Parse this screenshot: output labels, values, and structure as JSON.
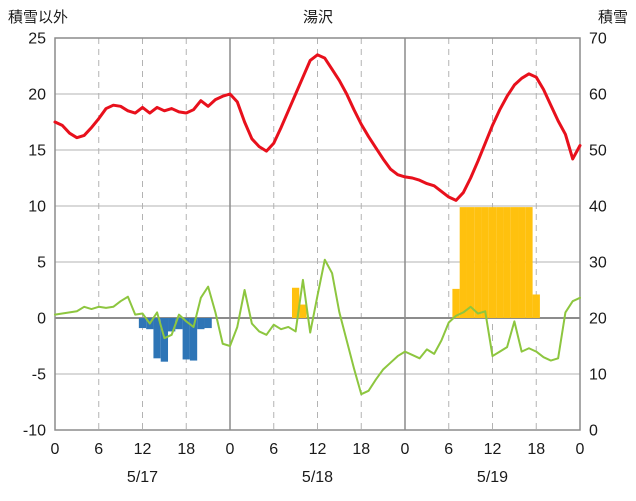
{
  "page": {
    "title_left": "積雪以外",
    "title_center": "湯沢",
    "title_right": "積雪"
  },
  "chart_data": {
    "type": "line",
    "title": "湯沢",
    "left_axis_title": "積雪以外",
    "right_axis_title": "積雪",
    "xlim": [
      0,
      72
    ],
    "ylim_left": [
      -10,
      25
    ],
    "ylim_right": [
      0,
      70
    ],
    "left_ticks": [
      25,
      20,
      15,
      10,
      5,
      0,
      -5,
      -10
    ],
    "right_ticks": [
      70,
      60,
      50,
      40,
      30,
      20,
      10,
      0
    ],
    "x_ticks": [
      {
        "h": 0,
        "label": "0"
      },
      {
        "h": 6,
        "label": "6"
      },
      {
        "h": 12,
        "label": "12"
      },
      {
        "h": 18,
        "label": "18"
      },
      {
        "h": 24,
        "label": "0"
      },
      {
        "h": 30,
        "label": "6"
      },
      {
        "h": 36,
        "label": "12"
      },
      {
        "h": 42,
        "label": "18"
      },
      {
        "h": 48,
        "label": "0"
      },
      {
        "h": 54,
        "label": "6"
      },
      {
        "h": 60,
        "label": "12"
      },
      {
        "h": 66,
        "label": "18"
      },
      {
        "h": 72,
        "label": "0"
      }
    ],
    "date_labels": [
      {
        "h": 12,
        "label": "5/17"
      },
      {
        "h": 36,
        "label": "5/18"
      },
      {
        "h": 60,
        "label": "5/19"
      }
    ],
    "solid_vlines": [
      24,
      48
    ],
    "dashed_vlines": [
      6,
      12,
      18,
      30,
      36,
      42,
      54,
      60,
      66
    ],
    "grid": true,
    "legend": "none",
    "colors": {
      "red": "#e8101c",
      "green": "#8dc63f",
      "blue": "#2e75b6",
      "yellow": "#ffc10e",
      "grid": "#b3b3b3",
      "axis": "#8c8c8c",
      "text": "#1a1a1a"
    },
    "series": [
      {
        "name": "red-line",
        "type": "line",
        "axis": "left",
        "color_key": "red",
        "values": [
          17.5,
          17.2,
          16.5,
          16.1,
          16.3,
          17.0,
          17.8,
          18.7,
          19.0,
          18.9,
          18.5,
          18.3,
          18.8,
          18.3,
          18.8,
          18.5,
          18.7,
          18.4,
          18.3,
          18.6,
          19.4,
          18.9,
          19.5,
          19.8,
          20.0,
          19.3,
          17.5,
          16.0,
          15.3,
          14.9,
          15.6,
          17.0,
          18.5,
          20.0,
          21.5,
          23.0,
          23.5,
          23.2,
          22.2,
          21.2,
          20.0,
          18.6,
          17.3,
          16.2,
          15.2,
          14.2,
          13.3,
          12.8,
          12.6,
          12.5,
          12.3,
          12.0,
          11.8,
          11.3,
          10.8,
          10.5,
          11.2,
          12.5,
          14.0,
          15.6,
          17.2,
          18.6,
          19.8,
          20.8,
          21.4,
          21.8,
          21.5,
          20.4,
          19.0,
          17.6,
          16.4,
          14.2,
          15.4
        ]
      },
      {
        "name": "green-line",
        "type": "line",
        "axis": "left",
        "color_key": "green",
        "values": [
          0.3,
          0.4,
          0.5,
          0.6,
          1.0,
          0.8,
          1.0,
          0.9,
          1.0,
          1.5,
          1.9,
          0.3,
          0.4,
          -0.5,
          0.5,
          -1.8,
          -1.5,
          0.3,
          -0.3,
          -0.8,
          1.8,
          2.8,
          0.5,
          -2.3,
          -2.5,
          -0.8,
          2.5,
          -0.5,
          -1.2,
          -1.5,
          -0.6,
          -1.0,
          -0.8,
          -1.2,
          3.4,
          -1.3,
          2.0,
          5.2,
          4.0,
          0.5,
          -2.0,
          -4.5,
          -6.8,
          -6.5,
          -5.5,
          -4.6,
          -4.0,
          -3.4,
          -3.0,
          -3.3,
          -3.6,
          -2.8,
          -3.2,
          -2.0,
          -0.4,
          0.2,
          0.5,
          1.0,
          0.4,
          0.6,
          -3.4,
          -3.0,
          -2.6,
          -0.3,
          -3.0,
          -2.7,
          -3.0,
          -3.5,
          -3.8,
          -3.6,
          0.5,
          1.5,
          1.8
        ]
      },
      {
        "name": "blue-bars",
        "type": "bar",
        "axis": "left",
        "color_key": "blue",
        "points": [
          {
            "h": 12,
            "v": -0.9
          },
          {
            "h": 13,
            "v": -1.0
          },
          {
            "h": 14,
            "v": -3.6
          },
          {
            "h": 15,
            "v": -3.9
          },
          {
            "h": 16,
            "v": -1.2
          },
          {
            "h": 17,
            "v": -1.0
          },
          {
            "h": 18,
            "v": -3.7
          },
          {
            "h": 19,
            "v": -3.8
          },
          {
            "h": 20,
            "v": -1.0
          },
          {
            "h": 21,
            "v": -0.9
          }
        ]
      },
      {
        "name": "yellow-bars",
        "type": "bar",
        "axis": "left",
        "color_key": "yellow",
        "points": [
          {
            "h": 33,
            "v": 2.7
          },
          {
            "h": 34,
            "v": 1.2
          },
          {
            "h": 55,
            "v": 2.6
          },
          {
            "h": 56,
            "v": 9.9
          },
          {
            "h": 57,
            "v": 9.9
          },
          {
            "h": 58,
            "v": 9.9
          },
          {
            "h": 59,
            "v": 9.9
          },
          {
            "h": 60,
            "v": 9.9
          },
          {
            "h": 61,
            "v": 9.9
          },
          {
            "h": 62,
            "v": 9.9
          },
          {
            "h": 63,
            "v": 9.9
          },
          {
            "h": 64,
            "v": 9.9
          },
          {
            "h": 65,
            "v": 9.9
          },
          {
            "h": 66,
            "v": 2.1
          }
        ]
      }
    ]
  }
}
